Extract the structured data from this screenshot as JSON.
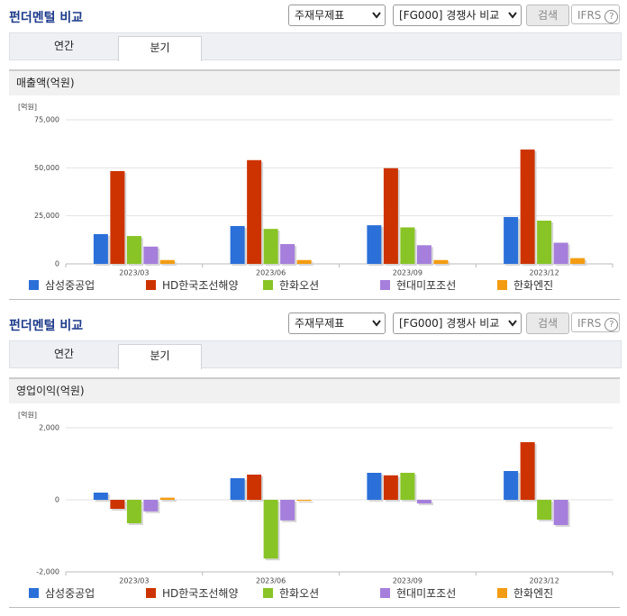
{
  "panels": [
    {
      "title": "펀더멘털 비교",
      "select_statement": "주재무제표",
      "select_compare": "[FG000] 경쟁사 비교",
      "search_button": "검색",
      "ifrs": "IFRS",
      "help": "?",
      "tabs": [
        "연간",
        "분기"
      ],
      "section_title": "매출액(억원)"
    },
    {
      "title": "펀더멘털 비교",
      "select_statement": "주재무제표",
      "select_compare": "[FG000] 경쟁사 비교",
      "search_button": "검색",
      "ifrs": "IFRS",
      "help": "?",
      "tabs": [
        "연간",
        "분기"
      ],
      "section_title": "영업이익(억원)"
    }
  ],
  "chart_data": [
    {
      "type": "bar",
      "unit_label": "[억원]",
      "categories": [
        "2023/03",
        "2023/06",
        "2023/09",
        "2023/12"
      ],
      "ylim": [
        0,
        75000
      ],
      "yticks": [
        0,
        {
          "value": 25000,
          "label": "25,000"
        },
        {
          "value": 50000,
          "label": "50,000"
        },
        {
          "value": 75000,
          "label": "75,000"
        }
      ],
      "grid": true,
      "series": [
        {
          "name": "삼성중공업",
          "color": "#2b6fd8",
          "values": [
            15500,
            19700,
            20100,
            24400
          ]
        },
        {
          "name": "HD한국조선해양",
          "color": "#cc3300",
          "values": [
            48300,
            54000,
            49800,
            59500
          ]
        },
        {
          "name": "한화오션",
          "color": "#88c425",
          "values": [
            14500,
            18200,
            19000,
            22500
          ]
        },
        {
          "name": "현대미포조선",
          "color": "#a57fdb",
          "values": [
            9000,
            10300,
            9700,
            11000
          ]
        },
        {
          "name": "한화엔진",
          "color": "#f39c12",
          "values": [
            2000,
            2000,
            2000,
            3000
          ]
        }
      ]
    },
    {
      "type": "bar",
      "unit_label": "[억원]",
      "categories": [
        "2023/03",
        "2023/06",
        "2023/09",
        "2023/12"
      ],
      "ylim": [
        -2000,
        2000
      ],
      "yticks": [
        {
          "value": -2000,
          "label": "-2,000"
        },
        0,
        {
          "value": 2000,
          "label": "2,000"
        }
      ],
      "grid": true,
      "series": [
        {
          "name": "삼성중공업",
          "color": "#2b6fd8",
          "values": [
            200,
            600,
            750,
            800
          ]
        },
        {
          "name": "HD한국조선해양",
          "color": "#cc3300",
          "values": [
            -250,
            700,
            680,
            1600
          ]
        },
        {
          "name": "한화오션",
          "color": "#88c425",
          "values": [
            -650,
            -1630,
            750,
            -550
          ]
        },
        {
          "name": "현대미포조선",
          "color": "#a57fdb",
          "values": [
            -320,
            -570,
            -100,
            -700
          ]
        },
        {
          "name": "한화엔진",
          "color": "#f39c12",
          "values": [
            60,
            -30,
            null,
            null
          ]
        }
      ]
    }
  ]
}
